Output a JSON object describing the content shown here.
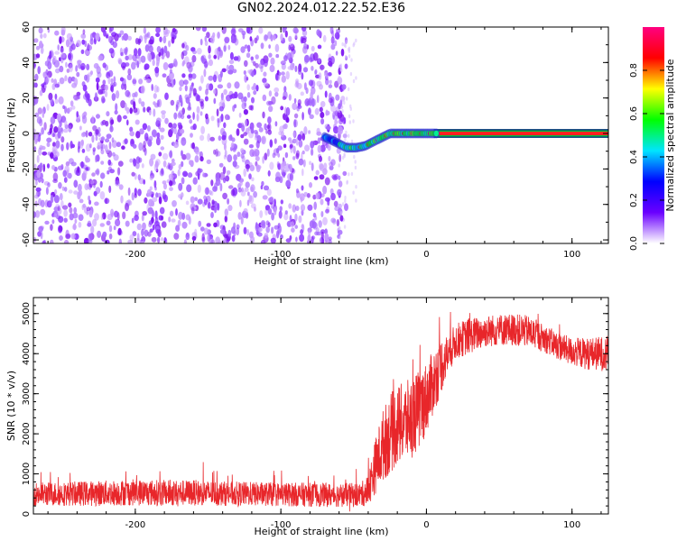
{
  "title": "GN02.2024.012.22.52.E36",
  "chart_data": [
    {
      "type": "heatmap",
      "xlabel": "Height of straight line (km)",
      "ylabel": "Frequency (Hz)",
      "xlim": [
        -270,
        125
      ],
      "ylim": [
        -62,
        60
      ],
      "x_ticks": [
        -200,
        -100,
        0,
        100
      ],
      "y_ticks": [
        -60,
        -40,
        -20,
        0,
        20,
        40,
        60
      ],
      "grid": false,
      "colorbar": {
        "label": "Normalized spectral amplitude",
        "range": [
          0.0,
          1.0
        ],
        "ticks": [
          0.0,
          0.2,
          0.4,
          0.6,
          0.8
        ],
        "colormap": [
          "#ffffff",
          "#6a00ff",
          "#0000ff",
          "#00e5ff",
          "#00ff00",
          "#ffff00",
          "#ff0000",
          "#ff0080"
        ]
      },
      "features": {
        "noise_region_x": [
          -270,
          -55
        ],
        "noise_amplitude": 0.15,
        "signal_track": {
          "x": [
            -70,
            -62,
            -55,
            -48,
            -42,
            -35,
            -30,
            -25,
            -15,
            -5,
            0,
            5,
            20,
            60,
            125
          ],
          "y": [
            -2,
            -5,
            -8,
            -8,
            -7,
            -4,
            -2,
            0,
            0,
            0,
            0,
            0,
            0,
            0,
            0
          ],
          "peak_amplitude": 0.95
        }
      }
    },
    {
      "type": "line",
      "xlabel": "Height of straight line (km)",
      "ylabel": "SNR (10 * v/v)",
      "xlim": [
        -270,
        125
      ],
      "ylim": [
        0,
        5400
      ],
      "x_ticks": [
        -200,
        -100,
        0,
        100
      ],
      "y_ticks": [
        0,
        1000,
        2000,
        3000,
        4000,
        5000
      ],
      "grid": false,
      "series": [
        {
          "color": "#e8262a",
          "x": [
            -270,
            -250,
            -220,
            -200,
            -180,
            -160,
            -140,
            -120,
            -100,
            -80,
            -60,
            -45,
            -40,
            -35,
            -30,
            -25,
            -20,
            -15,
            -10,
            -5,
            0,
            5,
            10,
            15,
            20,
            30,
            40,
            50,
            60,
            70,
            80,
            90,
            100,
            110,
            125
          ],
          "y": [
            500,
            500,
            520,
            540,
            520,
            530,
            510,
            500,
            490,
            480,
            470,
            480,
            600,
            1200,
            1700,
            2000,
            2200,
            2300,
            2400,
            2600,
            2900,
            3300,
            3700,
            4000,
            4300,
            4450,
            4550,
            4600,
            4600,
            4550,
            4400,
            4200,
            4050,
            4000,
            4000
          ],
          "spread": [
            300,
            300,
            320,
            330,
            330,
            320,
            310,
            300,
            300,
            300,
            300,
            300,
            400,
            700,
            900,
            1000,
            1000,
            1000,
            1000,
            1000,
            900,
            800,
            700,
            500,
            450,
            450,
            400,
            400,
            400,
            400,
            350,
            350,
            350,
            400,
            450
          ]
        }
      ]
    }
  ]
}
